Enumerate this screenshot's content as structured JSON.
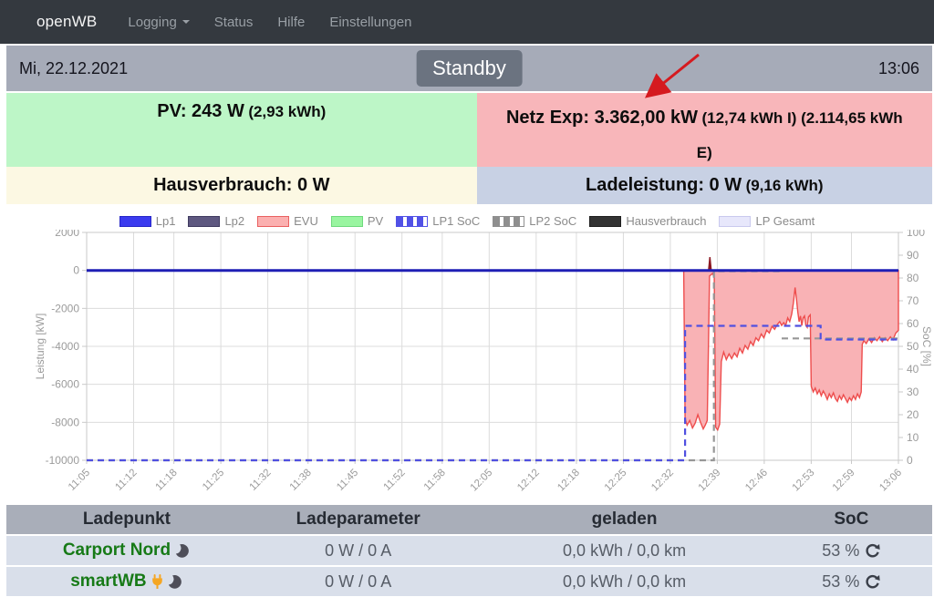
{
  "navbar": {
    "brand": "openWB",
    "items": [
      {
        "label": "Logging",
        "caret": true
      },
      {
        "label": "Status",
        "caret": false
      },
      {
        "label": "Hilfe",
        "caret": false
      },
      {
        "label": "Einstellungen",
        "caret": false
      }
    ]
  },
  "statusbar": {
    "date": "Mi, 22.12.2021",
    "mode_button": "Standby",
    "time": "13:06"
  },
  "tiles": {
    "pv": {
      "main": "PV: 243 W",
      "sub": "(2,93 kWh)"
    },
    "grid": {
      "main": "Netz Exp: 3.362,00 kW",
      "sub": "(12,74 kWh I) (2.114,65 kWh E)"
    },
    "house": {
      "main": "Hausverbrauch: 0 W",
      "sub": ""
    },
    "charge": {
      "main": "Ladeleistung: 0 W",
      "sub": "(9,16 kWh)"
    }
  },
  "chart_data": {
    "type": "line",
    "title": "",
    "x_axis": {
      "tick_labels": [
        "11:05",
        "11:12",
        "11:18",
        "11:25",
        "11:32",
        "11:38",
        "11:45",
        "11:52",
        "11:58",
        "12:05",
        "12:12",
        "12:18",
        "12:25",
        "12:32",
        "12:39",
        "12:46",
        "12:53",
        "12:59",
        "13:06"
      ],
      "tick_minutes": [
        0,
        7,
        13,
        20,
        27,
        33,
        40,
        47,
        53,
        60,
        67,
        73,
        80,
        87,
        94,
        101,
        108,
        114,
        121
      ]
    },
    "y_left": {
      "label": "Leistung [kW]",
      "ticks": [
        2000,
        0,
        -2000,
        -4000,
        -6000,
        -8000,
        -10000
      ],
      "range": [
        -10000,
        2000
      ]
    },
    "y_right": {
      "label": "SoC [%]",
      "ticks": [
        100,
        90,
        80,
        70,
        60,
        50,
        40,
        30,
        20,
        10,
        0
      ],
      "range": [
        0,
        100
      ]
    },
    "grid": true,
    "legend_position": "top",
    "legend": [
      {
        "label": "Lp1",
        "kind": "solid",
        "color": "#3b3bef",
        "border": "#2626c8"
      },
      {
        "label": "Lp2",
        "kind": "solid",
        "color": "#5e5880",
        "border": "#3f3a60"
      },
      {
        "label": "EVU",
        "kind": "outline",
        "color": "#fbb0b0",
        "border": "#e96060"
      },
      {
        "label": "PV",
        "kind": "outline",
        "color": "#99f5a0",
        "border": "#6fd97d"
      },
      {
        "label": "LP1 SoC",
        "kind": "dashed",
        "color": "#5151e6",
        "border": "#5151e6"
      },
      {
        "label": "LP2 SoC",
        "kind": "dashed",
        "color": "#8f8f8f",
        "border": "#8f8f8f"
      },
      {
        "label": "Hausverbrauch",
        "kind": "solid",
        "color": "#333333",
        "border": "#1f1f1f"
      },
      {
        "label": "LP Gesamt",
        "kind": "solid",
        "color": "#e7e7fb",
        "border": "#c9c9ee"
      }
    ],
    "series": [
      {
        "name": "EVU",
        "axis": "left",
        "kind": "area",
        "stroke": "#ee4d4d",
        "fill": "#f9b2b5",
        "points": [
          [
            0,
            0
          ],
          [
            89,
            0
          ],
          [
            89.2,
            -7800
          ],
          [
            89.5,
            -8150
          ],
          [
            89.9,
            -7900
          ],
          [
            90.3,
            -8300
          ],
          [
            90.7,
            -8050
          ],
          [
            91.1,
            -7600
          ],
          [
            91.5,
            -8000
          ],
          [
            91.9,
            -8350
          ],
          [
            92.2,
            -8150
          ],
          [
            92.5,
            -7900
          ],
          [
            92.75,
            -2500
          ],
          [
            92.85,
            -300
          ],
          [
            93.3,
            -150
          ],
          [
            93.55,
            -400
          ],
          [
            93.75,
            -8250
          ],
          [
            94.05,
            -8400
          ],
          [
            94.35,
            -8100
          ],
          [
            94.6,
            -4800
          ],
          [
            94.95,
            -4300
          ],
          [
            95.35,
            -4700
          ],
          [
            95.75,
            -4400
          ],
          [
            96.15,
            -4650
          ],
          [
            96.55,
            -4350
          ],
          [
            96.95,
            -4550
          ],
          [
            97.35,
            -4100
          ],
          [
            97.75,
            -4350
          ],
          [
            98.15,
            -3950
          ],
          [
            98.55,
            -4150
          ],
          [
            98.95,
            -3750
          ],
          [
            99.35,
            -3950
          ],
          [
            99.75,
            -3550
          ],
          [
            100.15,
            -3700
          ],
          [
            100.55,
            -3350
          ],
          [
            100.95,
            -3550
          ],
          [
            101.35,
            -3150
          ],
          [
            101.75,
            -3300
          ],
          [
            102.15,
            -2950
          ],
          [
            102.55,
            -3100
          ],
          [
            102.95,
            -2850
          ],
          [
            103.3,
            -2700
          ],
          [
            103.6,
            -2900
          ],
          [
            103.9,
            -2750
          ],
          [
            104.2,
            -2900
          ],
          [
            104.5,
            -2500
          ],
          [
            104.8,
            -2700
          ],
          [
            105.1,
            -2300
          ],
          [
            105.35,
            -1700
          ],
          [
            105.6,
            -900
          ],
          [
            105.8,
            -1500
          ],
          [
            106,
            -2200
          ],
          [
            106.2,
            -2700
          ],
          [
            106.4,
            -2400
          ],
          [
            106.6,
            -2900
          ],
          [
            106.8,
            -2500
          ],
          [
            107,
            -2400
          ],
          [
            107.2,
            -2900
          ],
          [
            107.4,
            -3000
          ],
          [
            107.6,
            -2450
          ],
          [
            107.85,
            -2350
          ],
          [
            108,
            -6100
          ],
          [
            108.3,
            -6400
          ],
          [
            108.6,
            -6200
          ],
          [
            108.9,
            -6500
          ],
          [
            109.2,
            -6300
          ],
          [
            109.5,
            -6600
          ],
          [
            109.8,
            -6350
          ],
          [
            110.1,
            -6550
          ],
          [
            110.4,
            -6800
          ],
          [
            110.7,
            -6500
          ],
          [
            111,
            -6700
          ],
          [
            111.3,
            -6450
          ],
          [
            111.6,
            -6750
          ],
          [
            111.9,
            -6900
          ],
          [
            112.2,
            -6600
          ],
          [
            112.5,
            -6800
          ],
          [
            112.8,
            -6550
          ],
          [
            113.1,
            -6750
          ],
          [
            113.4,
            -6950
          ],
          [
            113.7,
            -6700
          ],
          [
            114,
            -6850
          ],
          [
            114.3,
            -6600
          ],
          [
            114.6,
            -6800
          ],
          [
            114.9,
            -6500
          ],
          [
            115.2,
            -6700
          ],
          [
            115.45,
            -6400
          ],
          [
            115.6,
            -3900
          ],
          [
            115.85,
            -3700
          ],
          [
            116.2,
            -3850
          ],
          [
            116.6,
            -3600
          ],
          [
            117,
            -3800
          ],
          [
            117.4,
            -3550
          ],
          [
            117.8,
            -3700
          ],
          [
            118.2,
            -3500
          ],
          [
            118.6,
            -3750
          ],
          [
            119,
            -3550
          ],
          [
            119.4,
            -3700
          ],
          [
            119.8,
            -3500
          ],
          [
            120.2,
            -3650
          ],
          [
            120.6,
            -3300
          ],
          [
            121,
            -3150
          ]
        ]
      },
      {
        "name": "EVU Import-Spitze",
        "axis": "left",
        "kind": "area",
        "stroke": "#8c1822",
        "fill": "#8c1822",
        "points": [
          [
            92.7,
            0
          ],
          [
            92.9,
            700
          ],
          [
            93.1,
            0
          ]
        ]
      },
      {
        "name": "LP2 SoC",
        "axis": "right",
        "kind": "dashed",
        "stroke": "#979797",
        "width": 2.2,
        "segments": [
          [
            [
              0,
              0
            ],
            [
              93.5,
              0
            ],
            [
              93.5,
              83
            ],
            [
              103.6,
              83
            ]
          ],
          [
            [
              103.6,
              53.5
            ],
            [
              121,
              53.5
            ]
          ]
        ]
      },
      {
        "name": "LP1 SoC",
        "axis": "right",
        "kind": "dashed",
        "stroke": "#5050e0",
        "width": 2.2,
        "segments": [
          [
            [
              0,
              0
            ],
            [
              89.2,
              0
            ],
            [
              89.2,
              59
            ],
            [
              109.4,
              59
            ],
            [
              109.4,
              53
            ],
            [
              121,
              53
            ]
          ]
        ]
      },
      {
        "name": "Lp1",
        "axis": "left",
        "kind": "solid",
        "stroke": "#1f1fb5",
        "width": 3,
        "points": [
          [
            0,
            0
          ],
          [
            121,
            0
          ]
        ]
      }
    ]
  },
  "table": {
    "headers": [
      "Ladepunkt",
      "Ladeparameter",
      "geladen",
      "SoC"
    ],
    "rows": [
      {
        "name": "Carport Nord",
        "icons": [
          "moon"
        ],
        "params": "0 W / 0 A",
        "charged": "0,0 kWh / 0,0 km",
        "soc": "53 %",
        "soc_icon": "refresh"
      },
      {
        "name": "smartWB",
        "icons": [
          "plug",
          "moon"
        ],
        "params": "0 W / 0 A",
        "charged": "0,0 kWh / 0,0 km",
        "soc": "53 %",
        "soc_icon": "refresh"
      }
    ]
  },
  "annotation": {
    "arrow_color": "#d51a1f"
  }
}
